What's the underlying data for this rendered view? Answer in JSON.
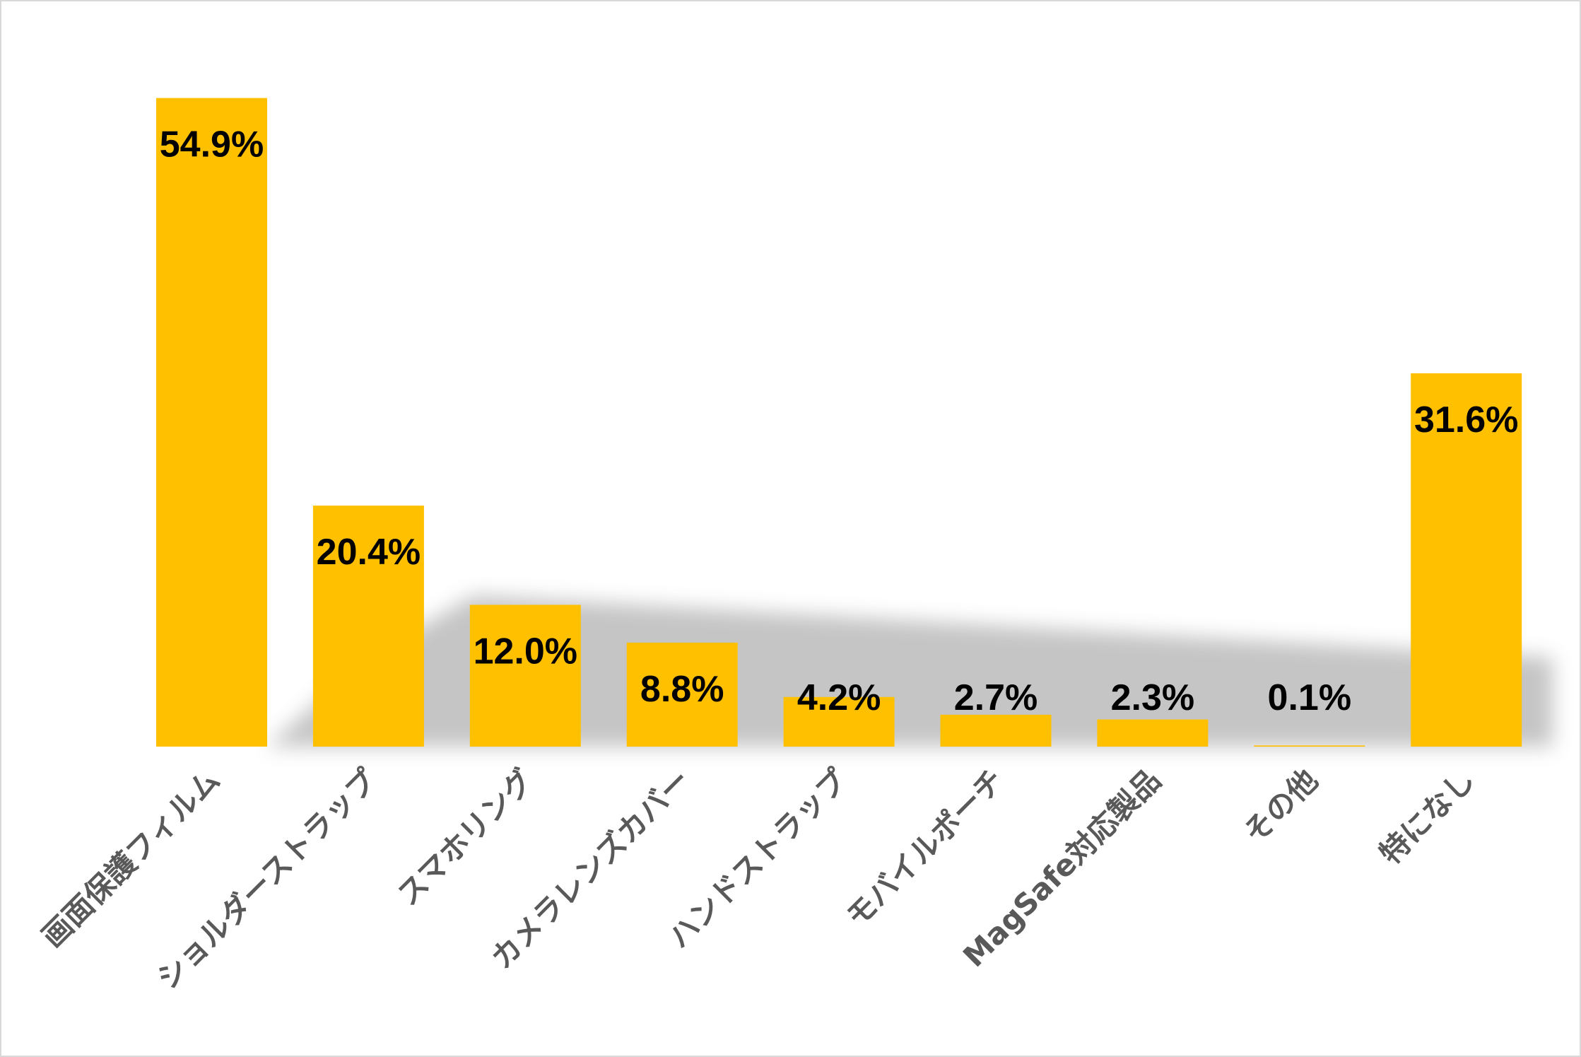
{
  "chart_data": {
    "type": "bar",
    "categories": [
      "画面保護フィルム",
      "ショルダーストラップ",
      "スマホリング",
      "カメラレンズカバー",
      "ハンドストラップ",
      "モバイルポーチ",
      "MagSafe対応製品",
      "その他",
      "特になし"
    ],
    "values": [
      54.9,
      20.4,
      12.0,
      8.8,
      4.2,
      2.7,
      2.3,
      0.1,
      31.6
    ],
    "value_labels": [
      "54.9%",
      "20.4%",
      "12.0%",
      "8.8%",
      "4.2%",
      "2.7%",
      "2.3%",
      "0.1%",
      "31.6%"
    ],
    "grid": false,
    "bar_color": "#FFC000",
    "data_label_color": "#000000",
    "category_label_color": "#595959",
    "shadow_color": "#7F7F7F"
  }
}
